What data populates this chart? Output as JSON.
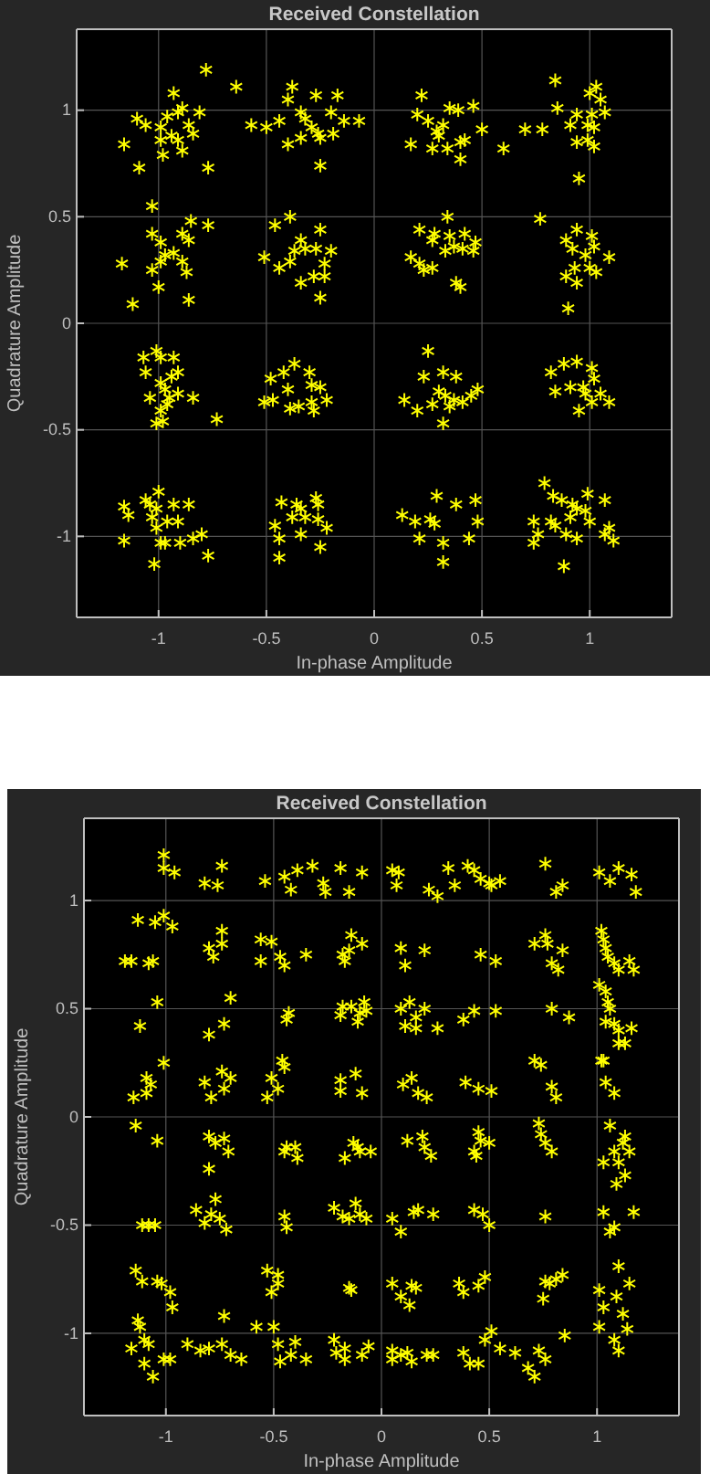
{
  "chart_data": [
    {
      "type": "scatter",
      "title": "Received Constellation",
      "xlabel": "In-phase Amplitude",
      "ylabel": "Quadrature Amplitude",
      "xlim": [
        -1.38,
        1.38
      ],
      "ylim": [
        -1.38,
        1.38
      ],
      "xticks": [
        -1,
        -0.5,
        0,
        0.5,
        1
      ],
      "yticks": [
        -1,
        -0.5,
        0,
        0.5,
        1
      ],
      "grid": true,
      "marker": "cross",
      "series": [
        {
          "color": "#ffff00",
          "x": [
            -0.78,
            -0.64,
            -0.93,
            -1.1,
            -1.06,
            -0.99,
            -0.96,
            -0.91,
            -0.89,
            -0.81,
            -0.86,
            -0.99,
            -0.94,
            -0.91,
            -0.84,
            -1.16,
            -0.89,
            -0.98,
            -1.09,
            -0.77,
            -0.38,
            -0.4,
            -0.27,
            -0.17,
            -0.57,
            -0.5,
            -0.44,
            -0.4,
            -0.34,
            -0.32,
            -0.29,
            -0.26,
            -0.25,
            -0.19,
            -0.2,
            -0.14,
            -0.07,
            -0.34,
            -0.25,
            0.22,
            0.2,
            0.25,
            0.29,
            0.32,
            0.35,
            0.39,
            0.46,
            0.4,
            0.42,
            0.5,
            0.17,
            0.27,
            0.34,
            0.4,
            0.6,
            0.3,
            0.84,
            0.85,
            0.7,
            0.78,
            0.91,
            0.94,
            0.99,
            1.01,
            1.03,
            1.0,
            1.05,
            1.07,
            1.02,
            0.94,
            0.99,
            1.02,
            0.95,
            -1.03,
            -1.03,
            -1.17,
            -0.99,
            -0.97,
            -0.99,
            -0.93,
            -0.89,
            -0.86,
            -0.85,
            -0.77,
            -0.89,
            -0.87,
            -1.12,
            -1.0,
            -0.86,
            -1.03,
            -0.46,
            -0.39,
            -0.51,
            -0.44,
            -0.39,
            -0.37,
            -0.34,
            -0.32,
            -0.25,
            -0.27,
            -0.2,
            -0.23,
            -0.34,
            -0.28,
            -0.25,
            -0.23,
            0.21,
            0.28,
            0.34,
            0.27,
            0.35,
            0.37,
            0.42,
            0.17,
            0.21,
            0.23,
            0.27,
            0.33,
            0.41,
            0.47,
            0.38,
            0.4,
            0.46,
            0.77,
            0.89,
            0.94,
            0.92,
            0.98,
            1.01,
            1.02,
            1.0,
            1.09,
            1.03,
            0.89,
            0.93,
            0.9,
            0.94,
            -1.07,
            -1.01,
            -0.99,
            -0.93,
            -1.06,
            -0.91,
            -0.94,
            -0.99,
            -0.97,
            -1.04,
            -0.95,
            -0.91,
            -0.84,
            -0.99,
            -1.01,
            -0.98,
            -0.73,
            -0.96,
            -0.37,
            -0.48,
            -0.42,
            -0.4,
            -0.3,
            -0.29,
            -0.25,
            -0.22,
            -0.51,
            -0.47,
            -0.39,
            -0.35,
            -0.29,
            -0.28,
            0.25,
            0.23,
            0.32,
            0.38,
            0.14,
            0.2,
            0.27,
            0.3,
            0.33,
            0.37,
            0.41,
            0.45,
            0.48,
            0.32,
            0.35,
            0.82,
            0.88,
            0.94,
            1.01,
            1.02,
            0.84,
            0.91,
            0.97,
            0.98,
            1.01,
            1.05,
            1.09,
            0.95,
            -1.16,
            -1.14,
            -1.06,
            -1.0,
            -1.04,
            -1.01,
            -1.03,
            -0.93,
            -0.96,
            -1.01,
            -0.91,
            -0.86,
            -0.8,
            -0.9,
            -0.99,
            -0.97,
            -0.84,
            -1.16,
            -0.77,
            -1.02,
            -0.43,
            -0.36,
            -0.34,
            -0.27,
            -0.26,
            -0.32,
            -0.26,
            -0.22,
            -0.46,
            -0.38,
            -0.34,
            -0.44,
            -0.25,
            -0.44,
            0.13,
            0.19,
            0.26,
            0.29,
            0.28,
            0.38,
            0.47,
            0.48,
            0.44,
            0.21,
            0.32,
            0.32,
            0.79,
            0.83,
            0.87,
            0.92,
            0.99,
            1.07,
            0.74,
            0.82,
            0.84,
            0.91,
            0.94,
            0.98,
            1.0,
            0.89,
            0.94,
            0.76,
            0.74,
            1.09,
            1.11,
            0.88,
            1.07
          ],
          "values": [
            1.19,
            1.11,
            1.08,
            0.96,
            0.93,
            0.92,
            0.97,
            0.99,
            1.01,
            0.99,
            0.93,
            0.86,
            0.88,
            0.86,
            0.89,
            0.84,
            0.81,
            0.79,
            0.73,
            0.73,
            1.11,
            1.05,
            1.07,
            1.07,
            0.93,
            0.92,
            0.95,
            0.84,
            0.99,
            0.96,
            0.92,
            0.89,
            0.87,
            0.89,
            0.99,
            0.95,
            0.95,
            0.87,
            0.74,
            1.07,
            0.98,
            0.95,
            0.9,
            0.93,
            1.01,
            1.0,
            1.02,
            0.85,
            0.86,
            0.91,
            0.84,
            0.82,
            0.82,
            0.77,
            0.82,
            0.88,
            1.14,
            1.01,
            0.91,
            0.91,
            0.93,
            0.98,
            0.93,
            0.98,
            1.11,
            1.08,
            1.05,
            0.99,
            0.92,
            0.85,
            0.86,
            0.83,
            0.68,
            0.55,
            0.42,
            0.28,
            0.38,
            0.32,
            0.29,
            0.33,
            0.42,
            0.39,
            0.48,
            0.46,
            0.29,
            0.24,
            0.09,
            0.17,
            0.11,
            0.25,
            0.46,
            0.5,
            0.31,
            0.26,
            0.29,
            0.34,
            0.39,
            0.35,
            0.44,
            0.35,
            0.34,
            0.28,
            0.19,
            0.22,
            0.12,
            0.22,
            0.44,
            0.42,
            0.5,
            0.39,
            0.41,
            0.36,
            0.42,
            0.31,
            0.28,
            0.25,
            0.26,
            0.34,
            0.35,
            0.38,
            0.19,
            0.17,
            0.34,
            0.49,
            0.39,
            0.44,
            0.35,
            0.32,
            0.41,
            0.36,
            0.26,
            0.31,
            0.24,
            0.22,
            0.26,
            0.07,
            0.19,
            -0.16,
            -0.13,
            -0.16,
            -0.16,
            -0.23,
            -0.23,
            -0.25,
            -0.28,
            -0.31,
            -0.35,
            -0.35,
            -0.33,
            -0.35,
            -0.41,
            -0.47,
            -0.46,
            -0.45,
            -0.38,
            -0.19,
            -0.26,
            -0.23,
            -0.31,
            -0.23,
            -0.29,
            -0.3,
            -0.36,
            -0.37,
            -0.36,
            -0.4,
            -0.39,
            -0.37,
            -0.41,
            -0.13,
            -0.25,
            -0.23,
            -0.25,
            -0.36,
            -0.41,
            -0.38,
            -0.32,
            -0.34,
            -0.36,
            -0.37,
            -0.34,
            -0.31,
            -0.47,
            -0.39,
            -0.23,
            -0.19,
            -0.18,
            -0.21,
            -0.26,
            -0.32,
            -0.3,
            -0.3,
            -0.33,
            -0.37,
            -0.33,
            -0.37,
            -0.41,
            -0.86,
            -0.9,
            -0.83,
            -0.79,
            -0.85,
            -0.87,
            -0.91,
            -0.85,
            -0.93,
            -0.96,
            -0.93,
            -0.85,
            -0.99,
            -1.03,
            -1.03,
            -1.03,
            -1.01,
            -1.02,
            -1.09,
            -1.13,
            -0.84,
            -0.85,
            -0.87,
            -0.82,
            -0.85,
            -0.91,
            -0.92,
            -0.96,
            -0.95,
            -0.91,
            -0.99,
            -1.01,
            -1.05,
            -1.1,
            -0.9,
            -0.93,
            -0.92,
            -0.81,
            -0.94,
            -0.85,
            -0.83,
            -0.93,
            -1.01,
            -1.01,
            -1.03,
            -1.12,
            -0.75,
            -0.81,
            -0.83,
            -0.85,
            -0.8,
            -0.83,
            -0.93,
            -0.93,
            -0.95,
            -0.91,
            -0.87,
            -0.88,
            -0.93,
            -0.99,
            -1.01,
            -0.99,
            -1.03,
            -0.96,
            -1.02,
            -1.14,
            -0.99
          ]
        }
      ]
    },
    {
      "type": "scatter",
      "title": "Received Constellation",
      "xlabel": "In-phase Amplitude",
      "ylabel": "Quadrature Amplitude",
      "xlim": [
        -1.38,
        1.38
      ],
      "ylim": [
        -1.38,
        1.38
      ],
      "xticks": [
        -1,
        -0.5,
        0,
        0.5,
        1
      ],
      "yticks": [
        -1,
        -0.5,
        0,
        0.5,
        1
      ],
      "grid": true,
      "marker": "cross",
      "series": [
        {
          "color": "#ffff00",
          "x": [
            -1.01,
            -1.01,
            -0.96,
            -0.82,
            -0.76,
            -0.74,
            -0.54,
            -0.45,
            -0.42,
            -0.39,
            -0.32,
            -0.27,
            -0.26,
            -0.19,
            -0.15,
            -0.09,
            0.05,
            0.08,
            0.07,
            0.22,
            0.26,
            0.31,
            0.34,
            0.4,
            0.43,
            0.46,
            0.5,
            0.51,
            0.55,
            0.76,
            0.81,
            0.84,
            1.01,
            1.06,
            1.1,
            1.16,
            1.18,
            -1.13,
            -1.05,
            -1.01,
            -0.97,
            -1.19,
            -1.16,
            -1.08,
            -1.06,
            -0.74,
            -0.8,
            -0.74,
            -0.78,
            -0.56,
            -0.51,
            -0.56,
            -0.47,
            -0.45,
            -0.35,
            -0.18,
            -0.14,
            -0.15,
            -0.09,
            -0.17,
            0.09,
            0.11,
            0.2,
            0.46,
            0.53,
            0.71,
            0.76,
            0.77,
            0.79,
            0.82,
            0.84,
            1.02,
            1.03,
            1.04,
            1.05,
            1.08,
            1.1,
            1.15,
            1.17,
            -1.04,
            -1.12,
            -0.8,
            -0.73,
            -0.7,
            -0.43,
            -0.44,
            -0.18,
            -0.19,
            -0.14,
            -0.08,
            -0.1,
            -0.11,
            -0.07,
            0.09,
            0.11,
            0.13,
            0.16,
            0.16,
            0.2,
            0.26,
            0.38,
            0.43,
            0.53,
            0.79,
            0.87,
            1.01,
            1.04,
            1.05,
            1.06,
            1.04,
            1.08,
            1.1,
            1.1,
            1.13,
            1.16,
            1.02,
            -1.15,
            -1.09,
            -1.07,
            -1.09,
            -1.01,
            -0.82,
            -0.79,
            -0.74,
            -0.73,
            -0.7,
            -0.53,
            -0.51,
            -0.48,
            -0.46,
            -0.45,
            -0.19,
            -0.19,
            -0.12,
            -0.09,
            0.1,
            0.14,
            0.17,
            0.21,
            0.39,
            0.45,
            0.51,
            0.71,
            0.74,
            0.79,
            0.81,
            1.03,
            1.04,
            1.08,
            -1.14,
            -1.04,
            -0.8,
            -0.77,
            -0.73,
            -0.71,
            -0.8,
            -0.44,
            -0.45,
            -0.4,
            -0.39,
            -0.17,
            -0.13,
            -0.11,
            -0.1,
            -0.05,
            0.12,
            0.19,
            0.2,
            0.23,
            0.43,
            0.45,
            0.46,
            0.5,
            0.44,
            0.73,
            0.74,
            0.76,
            0.79,
            1.06,
            1.03,
            1.08,
            1.1,
            1.12,
            1.13,
            1.15,
            1.13,
            1.09,
            -1.11,
            -1.08,
            -1.05,
            -0.86,
            -0.82,
            -0.79,
            -0.77,
            -0.75,
            -0.72,
            -0.45,
            -0.44,
            -0.22,
            -0.18,
            -0.15,
            -0.12,
            -0.1,
            -0.07,
            0.05,
            0.09,
            0.15,
            0.17,
            0.24,
            0.43,
            0.47,
            0.5,
            0.76,
            1.03,
            1.06,
            1.08,
            1.17,
            -1.14,
            -1.11,
            -1.04,
            -1.02,
            -0.98,
            -0.97,
            -0.53,
            -0.48,
            -0.48,
            -0.51,
            -0.15,
            -0.14,
            0.05,
            0.09,
            0.14,
            0.16,
            0.13,
            0.36,
            0.38,
            0.45,
            0.48,
            0.76,
            0.75,
            0.78,
            0.81,
            0.84,
            1.01,
            1.03,
            1.09,
            1.1,
            1.15,
            -1.16,
            -1.13,
            -1.12,
            -1.1,
            -1.1,
            -1.08,
            -1.06,
            -1.01,
            -0.98,
            -0.9,
            -0.84,
            -0.8,
            -0.73,
            -0.74,
            -0.7,
            -0.65,
            -0.58,
            -0.5,
            -0.48,
            -0.47,
            -0.42,
            -0.4,
            -0.35,
            -0.22,
            -0.21,
            -0.17,
            -0.17,
            -0.09,
            -0.06,
            0.05,
            0.05,
            0.09,
            0.12,
            0.14,
            0.21,
            0.24,
            0.38,
            0.41,
            0.45,
            0.48,
            0.51,
            0.55,
            0.62,
            0.68,
            0.71,
            0.73,
            0.76,
            0.85,
            1.01,
            1.08,
            1.1,
            1.12,
            1.14
          ],
          "values": [
            1.21,
            1.15,
            1.13,
            1.08,
            1.07,
            1.16,
            1.09,
            1.11,
            1.05,
            1.14,
            1.16,
            1.08,
            1.04,
            1.15,
            1.04,
            1.13,
            1.14,
            1.13,
            1.07,
            1.05,
            1.02,
            1.15,
            1.07,
            1.16,
            1.14,
            1.1,
            1.08,
            1.07,
            1.09,
            1.17,
            1.04,
            1.07,
            1.13,
            1.09,
            1.15,
            1.12,
            1.04,
            0.91,
            0.9,
            0.93,
            0.88,
            0.72,
            0.72,
            0.71,
            0.72,
            0.86,
            0.78,
            0.8,
            0.74,
            0.82,
            0.81,
            0.72,
            0.74,
            0.7,
            0.75,
            0.75,
            0.84,
            0.77,
            0.8,
            0.72,
            0.78,
            0.7,
            0.77,
            0.75,
            0.72,
            0.8,
            0.84,
            0.8,
            0.71,
            0.68,
            0.77,
            0.86,
            0.82,
            0.78,
            0.74,
            0.71,
            0.68,
            0.72,
            0.68,
            0.53,
            0.42,
            0.38,
            0.43,
            0.55,
            0.48,
            0.45,
            0.51,
            0.47,
            0.51,
            0.53,
            0.48,
            0.44,
            0.49,
            0.5,
            0.42,
            0.53,
            0.46,
            0.41,
            0.5,
            0.41,
            0.45,
            0.49,
            0.49,
            0.5,
            0.46,
            0.61,
            0.58,
            0.53,
            0.5,
            0.44,
            0.43,
            0.4,
            0.34,
            0.34,
            0.41,
            0.26,
            0.09,
            0.18,
            0.15,
            0.11,
            0.25,
            0.16,
            0.09,
            0.21,
            0.13,
            0.18,
            0.09,
            0.18,
            0.13,
            0.26,
            0.23,
            0.17,
            0.12,
            0.2,
            0.11,
            0.15,
            0.18,
            0.11,
            0.09,
            0.16,
            0.13,
            0.12,
            0.26,
            0.24,
            0.14,
            0.09,
            0.26,
            0.16,
            0.11,
            -0.04,
            -0.11,
            -0.09,
            -0.12,
            -0.1,
            -0.16,
            -0.24,
            -0.14,
            -0.16,
            -0.14,
            -0.19,
            -0.19,
            -0.12,
            -0.14,
            -0.16,
            -0.16,
            -0.11,
            -0.09,
            -0.14,
            -0.18,
            -0.16,
            -0.07,
            -0.11,
            -0.12,
            -0.18,
            -0.03,
            -0.08,
            -0.12,
            -0.16,
            -0.04,
            -0.21,
            -0.16,
            -0.21,
            -0.12,
            -0.09,
            -0.16,
            -0.27,
            -0.31,
            -0.5,
            -0.5,
            -0.5,
            -0.43,
            -0.49,
            -0.45,
            -0.38,
            -0.47,
            -0.52,
            -0.46,
            -0.51,
            -0.42,
            -0.46,
            -0.47,
            -0.4,
            -0.45,
            -0.47,
            -0.47,
            -0.53,
            -0.44,
            -0.43,
            -0.45,
            -0.43,
            -0.45,
            -0.5,
            -0.46,
            -0.44,
            -0.53,
            -0.51,
            -0.44,
            -0.71,
            -0.76,
            -0.76,
            -0.77,
            -0.81,
            -0.88,
            -0.71,
            -0.73,
            -0.77,
            -0.81,
            -0.79,
            -0.8,
            -0.77,
            -0.83,
            -0.78,
            -0.79,
            -0.87,
            -0.77,
            -0.81,
            -0.78,
            -0.74,
            -0.76,
            -0.84,
            -0.77,
            -0.75,
            -0.73,
            -0.8,
            -0.88,
            -0.83,
            -0.69,
            -0.77,
            -1.07,
            -0.94,
            -0.97,
            -1.03,
            -1.14,
            -1.05,
            -1.2,
            -1.12,
            -1.12,
            -1.05,
            -1.08,
            -1.07,
            -0.92,
            -1.05,
            -1.1,
            -1.12,
            -0.97,
            -0.97,
            -1.05,
            -1.13,
            -1.1,
            -1.04,
            -1.12,
            -1.03,
            -1.09,
            -1.07,
            -1.12,
            -1.1,
            -1.06,
            -1.08,
            -1.12,
            -1.1,
            -1.09,
            -1.13,
            -1.1,
            -1.1,
            -1.09,
            -1.14,
            -1.14,
            -1.03,
            -0.99,
            -1.07,
            -1.09,
            -1.16,
            -1.2,
            -1.08,
            -1.12,
            -1.01,
            -0.97,
            -1.03,
            -1.08,
            -0.91,
            -0.98
          ]
        }
      ]
    }
  ]
}
